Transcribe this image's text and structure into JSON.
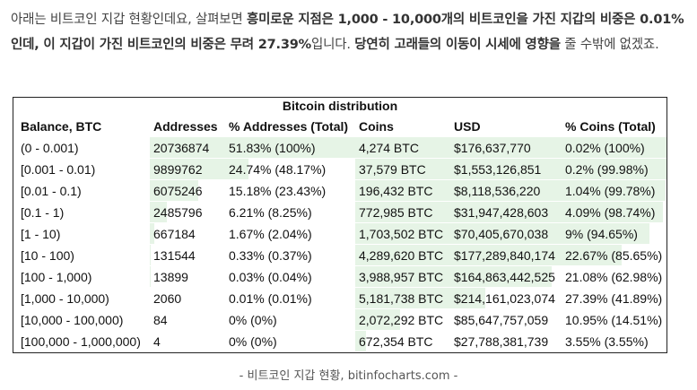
{
  "intro": {
    "p1": "아래는 비트코인 지갑 현황인데요, 살펴보면 ",
    "b1": "흥미로운 지점은 1,000 - 10,000개의 비트코인을 가진 지갑의 비중은 0.01%인데, 이 지갑이 가진 비트코인의 비중은 무려 27.39%",
    "p2": "입니다. ",
    "b2": "당연히 고래들의 이동이 시세에 영향을",
    "p3": " 줄 수밖에 없겠죠."
  },
  "table": {
    "title": "Bitcoin distribution",
    "headers": [
      "Balance, BTC",
      "Addresses",
      "% Addresses (Total)",
      "Coins",
      "USD",
      "% Coins (Total)"
    ],
    "rows": [
      {
        "balance": "(0 - 0.001)",
        "addresses": "20736874",
        "pct_addr": "51.83% (100%)",
        "coins": "4,274 BTC",
        "usd": "$176,637,770",
        "pct_coins": "0.02% (100%)",
        "addr_share": 1.0,
        "coin_share": 1.0
      },
      {
        "balance": "[0.001 - 0.01)",
        "addresses": "9899762",
        "pct_addr": "24.74% (48.17%)",
        "coins": "37,579 BTC",
        "usd": "$1,553,126,851",
        "pct_coins": "0.2% (99.98%)",
        "addr_share": 0.4817,
        "coin_share": 0.9998
      },
      {
        "balance": "[0.01 - 0.1)",
        "addresses": "6075246",
        "pct_addr": "15.18% (23.43%)",
        "coins": "196,432 BTC",
        "usd": "$8,118,536,220",
        "pct_coins": "1.04% (99.78%)",
        "addr_share": 0.2343,
        "coin_share": 0.9978
      },
      {
        "balance": "[0.1 - 1)",
        "addresses": "2485796",
        "pct_addr": "6.21% (8.25%)",
        "coins": "772,985 BTC",
        "usd": "$31,947,428,603",
        "pct_coins": "4.09% (98.74%)",
        "addr_share": 0.0825,
        "coin_share": 0.9874
      },
      {
        "balance": "[1 - 10)",
        "addresses": "667184",
        "pct_addr": "1.67% (2.04%)",
        "coins": "1,703,502 BTC",
        "usd": "$70,405,670,038",
        "pct_coins": "9% (94.65%)",
        "addr_share": 0.0204,
        "coin_share": 0.9465
      },
      {
        "balance": "[10 - 100)",
        "addresses": "131544",
        "pct_addr": "0.33% (0.37%)",
        "coins": "4,289,620 BTC",
        "usd": "$177,289,840,174",
        "pct_coins": "22.67% (85.65%)",
        "addr_share": 0.0037,
        "coin_share": 0.8565
      },
      {
        "balance": "[100 - 1,000)",
        "addresses": "13899",
        "pct_addr": "0.03% (0.04%)",
        "coins": "3,988,957 BTC",
        "usd": "$164,863,442,525",
        "pct_coins": "21.08% (62.98%)",
        "addr_share": 0.0004,
        "coin_share": 0.6298
      },
      {
        "balance": "[1,000 - 10,000)",
        "addresses": "2060",
        "pct_addr": "0.01% (0.01%)",
        "coins": "5,181,738 BTC",
        "usd": "$214,161,023,074",
        "pct_coins": "27.39% (41.89%)",
        "addr_share": 0.0001,
        "coin_share": 0.4189
      },
      {
        "balance": "[10,000 - 100,000)",
        "addresses": "84",
        "pct_addr": "0% (0%)",
        "coins": "2,072,292 BTC",
        "usd": "$85,647,757,059",
        "pct_coins": "10.95% (14.51%)",
        "addr_share": 0.0,
        "coin_share": 0.1451
      },
      {
        "balance": "[100,000 - 1,000,000)",
        "addresses": "4",
        "pct_addr": "0% (0%)",
        "coins": "672,354 BTC",
        "usd": "$27,788,381,739",
        "pct_coins": "3.55% (3.55%)",
        "addr_share": 0.0,
        "coin_share": 0.0355
      }
    ],
    "bar_color": "#e6f4e6"
  },
  "caption": "- 비트코인 지갑 현황, bitinfocharts.com -"
}
